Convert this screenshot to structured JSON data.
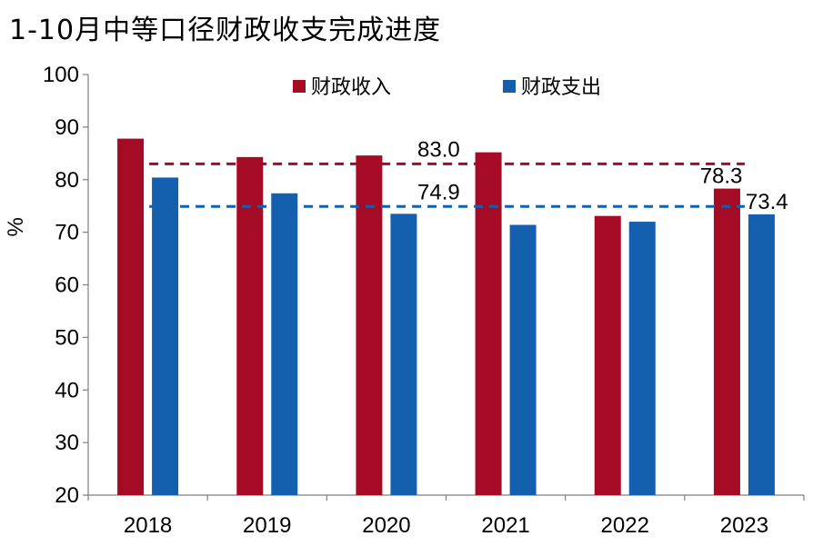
{
  "title": "1-10月中等口径财政收支完成进度",
  "colors": {
    "revenue": "#A50B24",
    "expenditure": "#1560AE",
    "axis": "#7f7f7f"
  },
  "chart_data": {
    "type": "bar",
    "title": "1-10月中等口径财政收支完成进度",
    "xlabel": "",
    "ylabel": "%",
    "ylim": [
      20,
      100
    ],
    "yticks": [
      20,
      30,
      40,
      50,
      60,
      70,
      80,
      90,
      100
    ],
    "categories": [
      "2018",
      "2019",
      "2020",
      "2021",
      "2022",
      "2023"
    ],
    "series": [
      {
        "name": "财政收入",
        "color": "#A50B24",
        "values": [
          87.8,
          84.3,
          84.6,
          85.2,
          73.1,
          78.3
        ]
      },
      {
        "name": "财政支出",
        "color": "#1560AE",
        "values": [
          80.4,
          77.4,
          73.5,
          71.4,
          72.0,
          73.4
        ]
      }
    ],
    "reference_lines": [
      {
        "value": 83.0,
        "label": "83.0",
        "color": "#A50B24",
        "style": "dashed"
      },
      {
        "value": 74.9,
        "label": "74.9",
        "color": "#1560AE",
        "style": "dashed"
      }
    ],
    "data_labels": [
      {
        "series": 0,
        "category": "2023",
        "text": "78.3"
      },
      {
        "series": 1,
        "category": "2023",
        "text": "73.4"
      }
    ],
    "legend_position": "top-center",
    "grid": false
  }
}
